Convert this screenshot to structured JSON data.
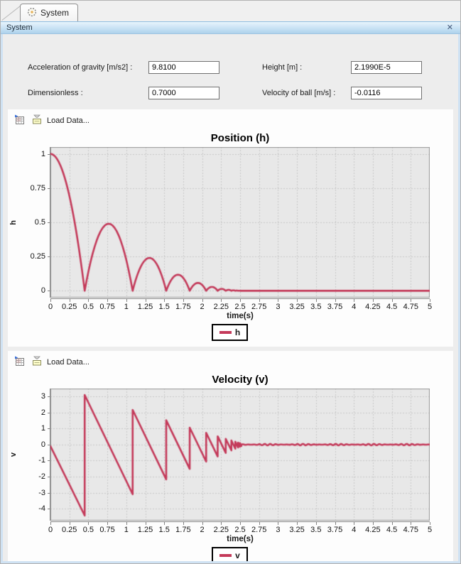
{
  "window": {
    "tab_label": "System",
    "title": "System",
    "close_glyph": "✕"
  },
  "icons": {
    "tab": "target-icon",
    "close": "close-icon",
    "export_csv": "export-csv-icon",
    "load": "load-data-icon"
  },
  "fields": [
    {
      "id": "gravity",
      "label": "Acceleration of gravity [m/s2] :",
      "value": "9.8100"
    },
    {
      "id": "height",
      "label": "Height [m] :",
      "value": "2.1990E-5"
    },
    {
      "id": "dimensionless",
      "label": "Dimensionless :",
      "value": "0.7000"
    },
    {
      "id": "velocity",
      "label": "Velocity of ball [m/s] :",
      "value": "-0.0116"
    }
  ],
  "toolbar": {
    "load_data_label": "Load Data..."
  },
  "colors": {
    "series": "#c43a5a",
    "plot_bg": "#e8e8e8",
    "grid": "#c9c9c9",
    "plot_border": "#9a9a9a",
    "titlebar_from": "#e7f4fd",
    "titlebar_to": "#aed2ec",
    "window_border": "#cfe2f3"
  },
  "chart_data": [
    {
      "type": "line",
      "title": "Position (h)",
      "xlabel": "time(s)",
      "ylabel": "h",
      "legend": "h",
      "series_name": "h",
      "series_color": "#c43a5a",
      "grid": true,
      "legend_position": "bottom",
      "xlim": [
        0,
        5
      ],
      "ylim": [
        -0.05,
        1.05
      ],
      "x_ticks": [
        0,
        0.25,
        0.5,
        0.75,
        1,
        1.25,
        1.5,
        1.75,
        2,
        2.25,
        2.5,
        2.75,
        3,
        3.25,
        3.5,
        3.75,
        4,
        4.25,
        4.5,
        4.75,
        5
      ],
      "y_ticks": [
        0,
        0.25,
        0.5,
        0.75,
        1
      ],
      "model": {
        "g": 9.81,
        "restitution": 0.7,
        "h0": 1.0
      },
      "arcs": [
        {
          "t0": 0,
          "t1": 0.4515,
          "apex": 0,
          "peak": 1.0
        },
        {
          "t0": 0.4515,
          "t1": 1.0837,
          "peak": 0.49
        },
        {
          "t0": 1.0837,
          "t1": 1.5262,
          "peak": 0.2401
        },
        {
          "t0": 1.5262,
          "t1": 1.836,
          "peak": 0.1176
        },
        {
          "t0": 1.836,
          "t1": 2.0528,
          "peak": 0.0576
        },
        {
          "t0": 2.0528,
          "t1": 2.2046,
          "peak": 0.0282
        },
        {
          "t0": 2.2046,
          "t1": 2.3108,
          "peak": 0.0138
        },
        {
          "t0": 2.3108,
          "t1": 2.3852,
          "peak": 0.0068
        },
        {
          "t0": 2.3852,
          "t1": 2.4373,
          "peak": 0.0033
        },
        {
          "t0": 2.4373,
          "t1": 2.4737,
          "peak": 0.0016
        },
        {
          "t0": 2.4737,
          "t1": 2.4992,
          "peak": 0.0008
        }
      ],
      "rest": {
        "from": 2.4992,
        "to": 5,
        "value": 0,
        "noise": 0
      }
    },
    {
      "type": "line",
      "title": "Velocity (v)",
      "xlabel": "time(s)",
      "ylabel": "v",
      "legend": "v",
      "series_name": "v",
      "series_color": "#c43a5a",
      "grid": true,
      "legend_position": "bottom",
      "xlim": [
        0,
        5
      ],
      "ylim": [
        -4.75,
        3.5
      ],
      "x_ticks": [
        0,
        0.25,
        0.5,
        0.75,
        1,
        1.25,
        1.5,
        1.75,
        2,
        2.25,
        2.5,
        2.75,
        3,
        3.25,
        3.5,
        3.75,
        4,
        4.25,
        4.5,
        4.75,
        5
      ],
      "y_ticks": [
        3,
        2,
        1,
        0,
        -1,
        -2,
        -3,
        -4
      ],
      "model": {
        "g": 9.81,
        "restitution": 0.7,
        "v0": 0
      },
      "segments": [
        [
          0,
          -0.1,
          0.4515,
          -4.43
        ],
        [
          0.4515,
          3.1,
          1.0837,
          -3.1
        ],
        [
          1.0837,
          2.17,
          1.5262,
          -2.17
        ],
        [
          1.5262,
          1.52,
          1.836,
          -1.52
        ],
        [
          1.836,
          1.06,
          2.0528,
          -1.06
        ],
        [
          2.0528,
          0.74,
          2.2046,
          -0.74
        ],
        [
          2.2046,
          0.52,
          2.3108,
          -0.52
        ],
        [
          2.3108,
          0.36,
          2.3852,
          -0.36
        ],
        [
          2.3852,
          0.26,
          2.4373,
          -0.26
        ],
        [
          2.4373,
          0.18,
          2.4737,
          -0.18
        ],
        [
          2.4737,
          0.13,
          2.4992,
          -0.13
        ],
        [
          2.4992,
          0.09,
          2.517,
          -0.09
        ]
      ],
      "rest": {
        "from": 2.517,
        "to": 5,
        "value": 0,
        "noise": 0.045
      }
    }
  ]
}
